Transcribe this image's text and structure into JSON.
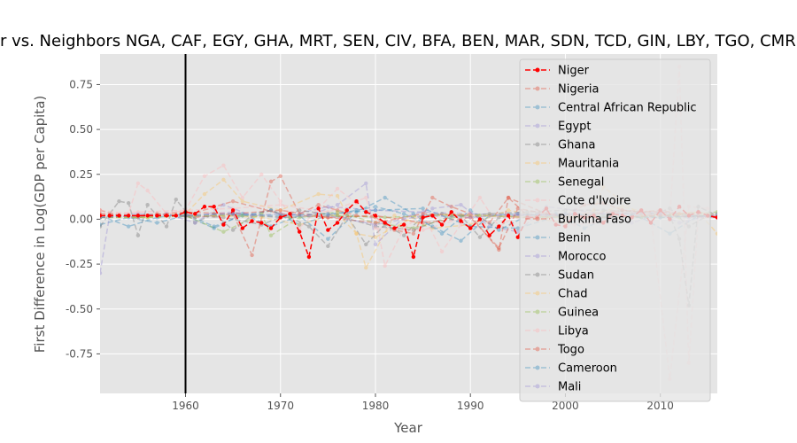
{
  "chart_data": {
    "type": "line",
    "title": "Niger vs. Neighbors NGA, CAF, EGY, GHA, MRT, SEN, CIV, BFA, BEN, MAR, SDN, TCD, GIN, LBY, TGO, CMR, MLI",
    "xlabel": "Year",
    "ylabel": "First Difference in Log(GDP per Capita)",
    "xlim": [
      1951,
      2016
    ],
    "ylim": [
      -0.97,
      0.92
    ],
    "xticks": [
      1960,
      1970,
      1980,
      1990,
      2000,
      2010
    ],
    "yticks": [
      -0.75,
      -0.5,
      -0.25,
      0.0,
      0.25,
      0.5,
      0.75
    ],
    "vline_x": 1960,
    "grid": true,
    "legend_position": "top-right",
    "series": [
      {
        "name": "Niger",
        "color": "#ff0000",
        "alpha": 1.0,
        "x": [
          1951,
          1952,
          1953,
          1954,
          1955,
          1956,
          1957,
          1958,
          1959,
          1960,
          1961,
          1962,
          1963,
          1964,
          1965,
          1966,
          1967,
          1968,
          1969,
          1970,
          1971,
          1972,
          1973,
          1974,
          1975,
          1976,
          1977,
          1978,
          1979,
          1980,
          1981,
          1982,
          1983,
          1984,
          1985,
          1986,
          1987,
          1988,
          1989,
          1990,
          1991,
          1992,
          1993,
          1994,
          1995,
          1996,
          1997,
          1998,
          1999,
          2000,
          2001,
          2002,
          2003,
          2004,
          2005,
          2006,
          2007,
          2008,
          2009,
          2010,
          2011,
          2012,
          2013,
          2014,
          2015,
          2016
        ],
        "y": [
          0.02,
          0.02,
          0.02,
          0.02,
          0.02,
          0.02,
          0.02,
          0.02,
          0.02,
          0.04,
          0.03,
          0.07,
          0.07,
          -0.03,
          0.05,
          -0.05,
          -0.01,
          -0.02,
          -0.05,
          0.01,
          0.03,
          -0.07,
          -0.21,
          0.06,
          -0.06,
          -0.02,
          0.05,
          0.1,
          0.04,
          0.02,
          -0.02,
          -0.05,
          -0.03,
          -0.21,
          0.01,
          0.02,
          -0.03,
          0.04,
          -0.01,
          -0.05,
          0.0,
          -0.09,
          -0.04,
          0.02,
          -0.1,
          0.01,
          0.01,
          0.06,
          -0.03,
          -0.04,
          0.03,
          0.01,
          0.02,
          -0.02,
          0.03,
          0.02,
          0.01,
          0.05,
          -0.02,
          0.05,
          0.0,
          0.07,
          0.02,
          0.04,
          0.02,
          0.01
        ]
      },
      {
        "name": "Nigeria",
        "color": "#e24a33",
        "alpha": 0.4,
        "x": [
          1951,
          1953,
          1955,
          1957,
          1959,
          1961,
          1963,
          1965,
          1967,
          1969,
          1970,
          1972,
          1974,
          1976,
          1978,
          1980,
          1982,
          1984,
          1986,
          1988,
          1990,
          1992,
          1994,
          1996,
          1998,
          2000,
          2002,
          2004,
          2006,
          2008,
          2010,
          2012,
          2014,
          2016
        ],
        "y": [
          0.05,
          0.02,
          0.01,
          0.03,
          0.02,
          0.01,
          0.02,
          0.03,
          -0.2,
          0.21,
          0.24,
          0.03,
          0.08,
          0.05,
          0.02,
          0.01,
          -0.06,
          -0.08,
          0.12,
          0.07,
          0.03,
          -0.02,
          0.12,
          0.02,
          0.01,
          0.02,
          0.08,
          0.09,
          0.05,
          0.04,
          0.05,
          0.03,
          0.04,
          0.01
        ]
      },
      {
        "name": "Central African Republic",
        "color": "#348abd",
        "alpha": 0.4,
        "x": [
          1951,
          1954,
          1957,
          1960,
          1963,
          1966,
          1969,
          1972,
          1975,
          1978,
          1981,
          1984,
          1987,
          1990,
          1993,
          1996,
          1999,
          2002,
          2005,
          2008,
          2011,
          2014,
          2016
        ],
        "y": [
          -0.03,
          0.01,
          -0.02,
          0.02,
          -0.05,
          0.03,
          -0.04,
          0.02,
          -0.11,
          0.04,
          0.12,
          0.03,
          -0.08,
          0.05,
          -0.06,
          0.02,
          0.03,
          -0.05,
          0.02,
          0.01,
          -0.08,
          0.02,
          0.01
        ]
      },
      {
        "name": "Egypt",
        "color": "#988ed5",
        "alpha": 0.4,
        "x": [
          1951,
          1955,
          1960,
          1965,
          1970,
          1975,
          1980,
          1985,
          1990,
          1995,
          2000,
          2005,
          2010,
          2016
        ],
        "y": [
          0.02,
          0.03,
          0.02,
          0.04,
          0.01,
          0.07,
          0.05,
          0.04,
          0.03,
          0.02,
          0.03,
          0.03,
          0.04,
          0.01
        ]
      },
      {
        "name": "Ghana",
        "color": "#777777",
        "alpha": 0.4,
        "x": [
          1951,
          1953,
          1954,
          1955,
          1956,
          1958,
          1959,
          1961,
          1963,
          1965,
          1967,
          1969,
          1971,
          1973,
          1975,
          1977,
          1979,
          1981,
          1983,
          1985,
          1987,
          1989,
          1991,
          1993,
          1995,
          1997,
          1999,
          2001,
          2003,
          2005,
          2007,
          2009,
          2011,
          2013,
          2015
        ],
        "y": [
          -0.04,
          0.1,
          0.09,
          -0.09,
          0.08,
          -0.04,
          0.11,
          -0.02,
          0.03,
          -0.06,
          0.02,
          0.05,
          0.01,
          -0.04,
          -0.15,
          0.02,
          -0.14,
          -0.03,
          -0.09,
          0.02,
          0.03,
          0.02,
          -0.1,
          0.01,
          0.02,
          0.03,
          0.02,
          0.01,
          0.03,
          0.04,
          0.03,
          0.02,
          0.06,
          -0.04,
          0.02
        ]
      },
      {
        "name": "Mauritania",
        "color": "#fbc15e",
        "alpha": 0.4,
        "x": [
          1951,
          1956,
          1960,
          1962,
          1964,
          1966,
          1970,
          1974,
          1976,
          1978,
          1979,
          1982,
          1986,
          1990,
          1994,
          1998,
          2002,
          2006,
          2010,
          2014,
          2016
        ],
        "y": [
          0.01,
          0.02,
          0.03,
          0.14,
          0.22,
          0.1,
          0.05,
          0.14,
          0.13,
          -0.08,
          -0.27,
          0.02,
          -0.05,
          -0.03,
          0.05,
          0.01,
          0.02,
          0.07,
          0.02,
          0.04,
          -0.08
        ]
      },
      {
        "name": "Senegal",
        "color": "#8eba42",
        "alpha": 0.4,
        "x": [
          1951,
          1955,
          1960,
          1964,
          1968,
          1969,
          1972,
          1976,
          1980,
          1984,
          1988,
          1992,
          1996,
          2000,
          2004,
          2008,
          2012,
          2016
        ],
        "y": [
          0.01,
          0.01,
          0.02,
          -0.07,
          0.03,
          -0.09,
          0.01,
          0.04,
          -0.02,
          -0.05,
          0.01,
          0.02,
          0.01,
          0.02,
          0.02,
          0.01,
          0.01,
          0.03
        ]
      },
      {
        "name": "Cote d'Ivoire",
        "color": "#ffb5b8",
        "alpha": 0.4,
        "x": [
          1951,
          1954,
          1955,
          1956,
          1958,
          1960,
          1962,
          1964,
          1966,
          1968,
          1970,
          1972,
          1974,
          1976,
          1978,
          1980,
          1981,
          1983,
          1985,
          1987,
          1989,
          1991,
          1993,
          1995,
          1997,
          1999,
          2001,
          2003,
          2005,
          2007,
          2009,
          2011,
          2013,
          2015
        ],
        "y": [
          0.05,
          0.03,
          0.2,
          0.16,
          0.03,
          0.05,
          0.24,
          0.3,
          0.12,
          0.25,
          0.1,
          -0.05,
          0.06,
          0.17,
          0.09,
          0.02,
          -0.26,
          -0.05,
          0.03,
          -0.18,
          -0.03,
          0.12,
          -0.04,
          0.02,
          0.05,
          -0.02,
          -0.03,
          -0.02,
          0.01,
          0.01,
          0.02,
          -0.89,
          0.07,
          0.06
        ]
      },
      {
        "name": "Burkina Faso",
        "color": "#e24a33",
        "alpha": 0.4,
        "x": [
          1951,
          1955,
          1960,
          1965,
          1970,
          1975,
          1980,
          1985,
          1990,
          1993,
          1994,
          1998,
          2002,
          2006,
          2010,
          2014,
          2016
        ],
        "y": [
          0.01,
          0.02,
          0.02,
          0.1,
          0.03,
          0.01,
          -0.02,
          0.03,
          0.02,
          -0.17,
          0.12,
          0.03,
          0.02,
          0.05,
          0.04,
          0.02,
          0.01
        ]
      },
      {
        "name": "Benin",
        "color": "#348abd",
        "alpha": 0.4,
        "x": [
          1951,
          1954,
          1957,
          1960,
          1963,
          1966,
          1969,
          1972,
          1975,
          1978,
          1980,
          1983,
          1986,
          1989,
          1992,
          1995,
          1998,
          2001,
          2004,
          2007,
          2010,
          2013,
          2016
        ],
        "y": [
          0.02,
          -0.04,
          0.01,
          0.03,
          -0.04,
          0.02,
          0.05,
          -0.03,
          0.02,
          0.05,
          0.07,
          0.03,
          -0.04,
          -0.12,
          0.02,
          0.03,
          0.02,
          0.03,
          0.01,
          0.02,
          0.01,
          0.02,
          0.01
        ]
      },
      {
        "name": "Morocco",
        "color": "#988ed5",
        "alpha": 0.4,
        "x": [
          1951,
          1952,
          1955,
          1958,
          1961,
          1964,
          1967,
          1970,
          1973,
          1976,
          1979,
          1980,
          1983,
          1986,
          1989,
          1992,
          1995,
          1998,
          2001,
          2004,
          2007,
          2010,
          2013,
          2016
        ],
        "y": [
          -0.3,
          0.02,
          0.01,
          0.03,
          -0.02,
          0.08,
          0.02,
          0.03,
          0.02,
          0.08,
          0.2,
          -0.14,
          0.01,
          0.06,
          0.08,
          -0.04,
          -0.07,
          0.07,
          0.05,
          0.03,
          -0.02,
          0.03,
          0.01,
          0.02
        ]
      },
      {
        "name": "Sudan",
        "color": "#777777",
        "alpha": 0.4,
        "x": [
          1951,
          1955,
          1960,
          1964,
          1968,
          1972,
          1976,
          1980,
          1984,
          1988,
          1992,
          1996,
          2000,
          2004,
          2008,
          2011,
          2012,
          2013,
          2014,
          2016
        ],
        "y": [
          0.01,
          0.02,
          0.02,
          0.01,
          -0.03,
          0.05,
          0.02,
          -0.04,
          -0.06,
          0.02,
          0.03,
          0.04,
          0.05,
          0.05,
          0.04,
          0.02,
          -0.11,
          -0.48,
          0.07,
          0.02
        ]
      },
      {
        "name": "Chad",
        "color": "#fbc15e",
        "alpha": 0.4,
        "x": [
          1951,
          1956,
          1960,
          1964,
          1968,
          1972,
          1976,
          1978,
          1980,
          1984,
          1988,
          1992,
          1996,
          2000,
          2003,
          2004,
          2008,
          2012,
          2014,
          2016
        ],
        "y": [
          0.01,
          0.01,
          0.02,
          0.02,
          0.01,
          -0.03,
          0.03,
          -0.08,
          -0.1,
          0.01,
          0.03,
          0.02,
          0.01,
          -0.02,
          0.05,
          0.18,
          0.02,
          0.03,
          0.04,
          0.02
        ]
      },
      {
        "name": "Guinea",
        "color": "#8eba42",
        "alpha": 0.4,
        "x": [
          1951,
          1956,
          1961,
          1966,
          1971,
          1976,
          1981,
          1986,
          1991,
          1996,
          2001,
          2006,
          2011,
          2016
        ],
        "y": [
          0.01,
          0.01,
          0.02,
          0.02,
          0.01,
          0.02,
          0.01,
          0.02,
          0.02,
          0.01,
          0.01,
          0.01,
          0.02,
          0.04
        ]
      },
      {
        "name": "Libya",
        "color": "#ffb5b8",
        "alpha": 0.4,
        "x": [
          1951,
          1955,
          1960,
          1965,
          1970,
          1975,
          1979,
          1980,
          1985,
          1990,
          1995,
          2000,
          2005,
          2010,
          2011,
          2012,
          2013,
          2014,
          2016
        ],
        "y": [
          0.03,
          0.04,
          0.05,
          0.06,
          0.08,
          0.04,
          0.12,
          -0.05,
          -0.06,
          0.02,
          0.01,
          0.03,
          0.04,
          0.03,
          0.0,
          0.85,
          -0.8,
          0.03,
          0.02
        ]
      },
      {
        "name": "Togo",
        "color": "#e24a33",
        "alpha": 0.4,
        "x": [
          1951,
          1955,
          1960,
          1965,
          1970,
          1975,
          1980,
          1985,
          1990,
          1993,
          1995,
          2000,
          2005,
          2010,
          2016
        ],
        "y": [
          0.03,
          0.02,
          0.04,
          0.03,
          0.05,
          0.01,
          0.02,
          -0.02,
          0.01,
          -0.16,
          0.06,
          0.01,
          0.01,
          0.02,
          0.01
        ]
      },
      {
        "name": "Cameroon",
        "color": "#348abd",
        "alpha": 0.4,
        "x": [
          1951,
          1955,
          1960,
          1965,
          1970,
          1975,
          1980,
          1985,
          1990,
          1995,
          2000,
          2005,
          2010,
          2016
        ],
        "y": [
          0.01,
          0.02,
          0.02,
          0.03,
          0.02,
          0.03,
          0.05,
          0.06,
          -0.04,
          -0.05,
          0.03,
          0.01,
          0.01,
          0.02
        ]
      },
      {
        "name": "Mali",
        "color": "#988ed5",
        "alpha": 0.4,
        "x": [
          1951,
          1955,
          1960,
          1965,
          1970,
          1975,
          1980,
          1985,
          1990,
          1995,
          2000,
          2005,
          2010,
          2012,
          2016
        ],
        "y": [
          0.01,
          0.02,
          0.02,
          0.03,
          0.01,
          0.02,
          -0.03,
          0.02,
          0.01,
          0.03,
          0.02,
          0.03,
          0.03,
          -0.02,
          0.03
        ]
      }
    ]
  }
}
